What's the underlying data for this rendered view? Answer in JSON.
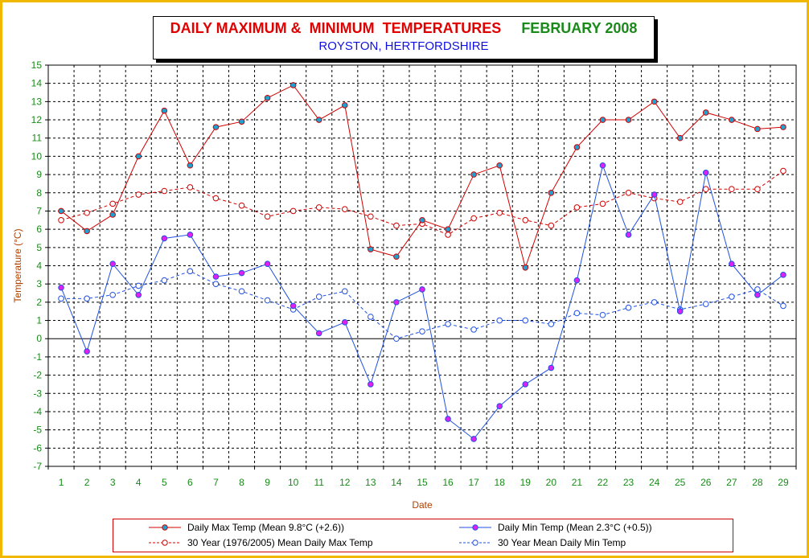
{
  "title": {
    "part1": "DAILY MAXIMUM &  MINIMUM  TEMPERATURES",
    "part2": "FEBRUARY 2008",
    "subtitle": "ROYSTON, HERTFORDSHIRE"
  },
  "colors": {
    "frame": "#f2b800",
    "title_red": "#e00000",
    "title_green": "#1a8a1a",
    "subtitle_blue": "#1010e0",
    "axis_label": "#b04000",
    "max_line": "#d00000",
    "max_marker": "#20a0d0",
    "min_line": "#2050e0",
    "min_marker": "#e020f0",
    "avg_marker_fill": "#ffffff"
  },
  "chart_data": {
    "type": "line",
    "xlabel": "Date",
    "ylabel": "Temperature (°C)",
    "ylim": [
      -7,
      15
    ],
    "grid": true,
    "x": [
      1,
      2,
      3,
      4,
      5,
      6,
      7,
      8,
      9,
      10,
      11,
      12,
      13,
      14,
      15,
      16,
      17,
      18,
      19,
      20,
      21,
      22,
      23,
      24,
      25,
      26,
      27,
      28,
      29
    ],
    "series": [
      {
        "name": "Daily Max Temp (Mean 9.8°C (+2.6))",
        "style": "solid-red-filled",
        "values": [
          7.0,
          5.9,
          6.8,
          10.0,
          12.5,
          9.5,
          11.6,
          11.9,
          13.2,
          13.9,
          12.0,
          12.8,
          4.9,
          4.5,
          6.5,
          6.0,
          9.0,
          9.5,
          3.9,
          8.0,
          10.5,
          12.0,
          12.0,
          13.0,
          11.0,
          12.4,
          12.0,
          11.5,
          11.6
        ]
      },
      {
        "name": "Daily Min Temp (Mean 2.3°C (+0.5))",
        "style": "solid-blue-filled",
        "values": [
          2.8,
          -0.7,
          4.1,
          2.4,
          5.5,
          5.7,
          3.4,
          3.6,
          4.1,
          1.8,
          0.3,
          0.9,
          -2.5,
          2.0,
          2.7,
          -4.4,
          -5.5,
          -3.7,
          -2.5,
          -1.6,
          3.2,
          9.5,
          5.7,
          7.9,
          1.5,
          9.1,
          4.1,
          2.4,
          3.5
        ]
      },
      {
        "name": "30 Year (1976/2005) Mean Daily Max Temp",
        "style": "dashed-red-hollow",
        "values": [
          6.5,
          6.9,
          7.4,
          7.9,
          8.1,
          8.3,
          7.7,
          7.3,
          6.7,
          7.0,
          7.2,
          7.1,
          6.7,
          6.2,
          6.3,
          5.7,
          6.6,
          6.9,
          6.5,
          6.2,
          7.2,
          7.4,
          8.0,
          7.7,
          7.5,
          8.2,
          8.2,
          8.2,
          9.2
        ]
      },
      {
        "name": "30 Year Mean Daily Min Temp",
        "style": "dashed-blue-hollow",
        "values": [
          2.2,
          2.2,
          2.4,
          2.9,
          3.2,
          3.7,
          3.0,
          2.6,
          2.1,
          1.6,
          2.3,
          2.6,
          1.2,
          0.0,
          0.4,
          0.8,
          0.5,
          1.0,
          1.0,
          0.8,
          1.4,
          1.3,
          1.7,
          2.0,
          1.6,
          1.9,
          2.3,
          2.7,
          1.8
        ]
      }
    ]
  }
}
